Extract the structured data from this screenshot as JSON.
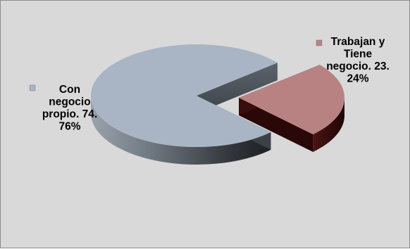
{
  "chart_data": {
    "type": "pie",
    "style": "3d-exploded",
    "slices": [
      {
        "label": "Con negocio propio. 74. 76%",
        "value": 74.76,
        "color": "#a9b5c4",
        "exploded": false
      },
      {
        "label": "Trabajan y Tiene negocio. 23. 24%",
        "value": 23.24,
        "color": "#b98282",
        "exploded": true
      }
    ],
    "legend_markers": true,
    "background": "#d9d9d9"
  }
}
